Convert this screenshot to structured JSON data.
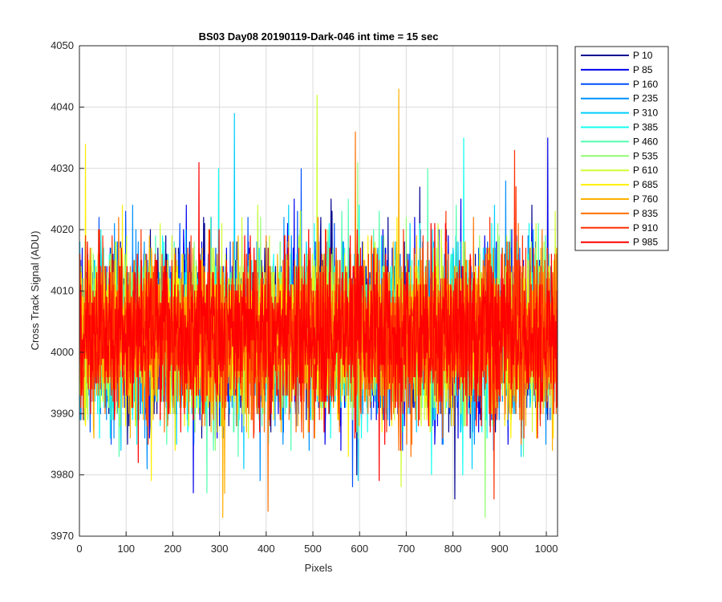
{
  "chart_data": {
    "type": "line",
    "title": "BS03 Day08 20190119-Dark-046 int time = 15 sec",
    "xlabel": "Pixels",
    "ylabel": "Cross Track Signal (ADU)",
    "xlim": [
      0,
      1024
    ],
    "ylim": [
      3970,
      4050
    ],
    "x_ticks": [
      0,
      100,
      200,
      300,
      400,
      500,
      600,
      700,
      800,
      900,
      1000
    ],
    "y_ticks": [
      3970,
      3980,
      3990,
      4000,
      4010,
      4020,
      4030,
      4040,
      4050
    ],
    "grid": true,
    "legend_position": "outside-right",
    "noise_model": {
      "center": 4003,
      "std": 6.5,
      "points_per_series": 1024
    },
    "series": [
      {
        "name": "P 10",
        "color": "#00008f",
        "seed": 11,
        "min": 3976,
        "max": 4027
      },
      {
        "name": "P 85",
        "color": "#0000ef",
        "seed": 23,
        "min": 3977,
        "max": 4035
      },
      {
        "name": "P 160",
        "color": "#0050ff",
        "seed": 37,
        "min": 3978,
        "max": 4030
      },
      {
        "name": "P 235",
        "color": "#0090ff",
        "seed": 41,
        "min": 3979,
        "max": 4028
      },
      {
        "name": "P 310",
        "color": "#00cfff",
        "seed": 53,
        "min": 3979,
        "max": 4039
      },
      {
        "name": "P 385",
        "color": "#10ffef",
        "seed": 67,
        "min": 3980,
        "max": 4035
      },
      {
        "name": "P 460",
        "color": "#50ffaf",
        "seed": 71,
        "min": 3977,
        "max": 4030
      },
      {
        "name": "P 535",
        "color": "#90ff70",
        "seed": 83,
        "min": 3973,
        "max": 4031
      },
      {
        "name": "P 610",
        "color": "#cfff30",
        "seed": 97,
        "min": 3978,
        "max": 4042
      },
      {
        "name": "P 685",
        "color": "#ffef00",
        "seed": 101,
        "min": 3979,
        "max": 4034
      },
      {
        "name": "P 760",
        "color": "#ffb000",
        "seed": 113,
        "min": 3973,
        "max": 4043
      },
      {
        "name": "P 835",
        "color": "#ff7000",
        "seed": 127,
        "min": 3974,
        "max": 4036
      },
      {
        "name": "P 910",
        "color": "#ff3000",
        "seed": 131,
        "min": 3976,
        "max": 4033
      },
      {
        "name": "P 985",
        "color": "#ff0000",
        "seed": 149,
        "min": 3979,
        "max": 4031
      }
    ]
  }
}
